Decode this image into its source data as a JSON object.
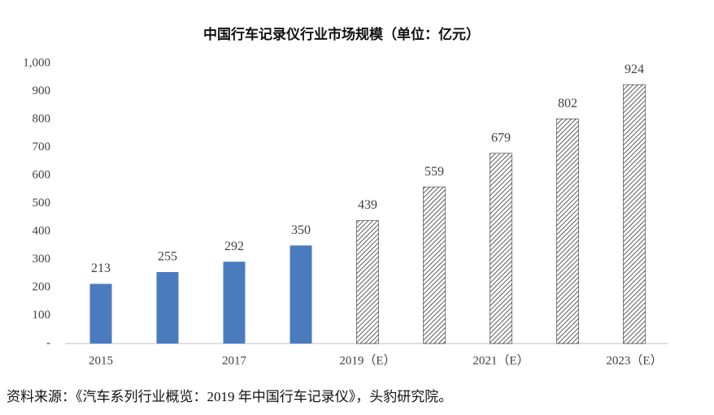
{
  "chart_data": {
    "type": "bar",
    "title": "中国行车记录仪行业市场规模（单位：亿元）",
    "categories": [
      "2015",
      null,
      "2017",
      null,
      "2019（E）",
      null,
      "2021（E）",
      null,
      "2023（E）"
    ],
    "values": [
      213,
      255,
      292,
      350,
      439,
      559,
      679,
      802,
      924
    ],
    "bar_styles": [
      "solid",
      "solid",
      "solid",
      "solid",
      "hatched",
      "hatched",
      "hatched",
      "hatched",
      "hatched"
    ],
    "color": "#4a7bbf",
    "hatch_color": "#333333",
    "ylim": [
      0,
      1000
    ],
    "yticks": [
      {
        "value": 0,
        "label": "-"
      },
      100,
      200,
      300,
      400,
      500,
      600,
      700,
      800,
      900,
      {
        "value": 1000,
        "label": "1,000"
      }
    ],
    "grid": false,
    "source": "资料来源：《汽车系列行业概览：2019 年中国行车记录仪》，头豹研究院。"
  }
}
